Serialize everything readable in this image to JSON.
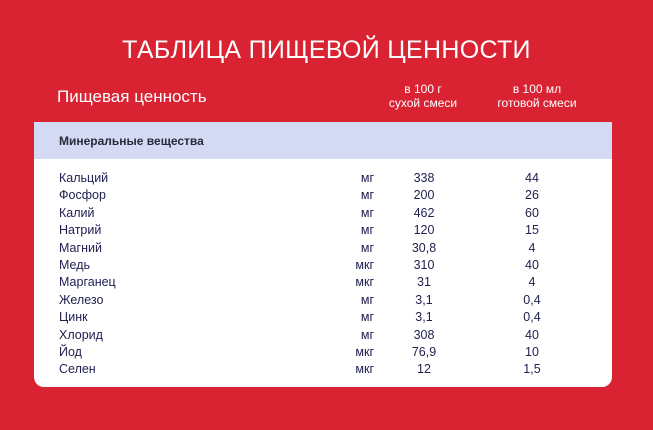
{
  "title": "ТАБЛИЦА ПИЩЕВОЙ ЦЕННОСТИ",
  "header": {
    "label": "Пищевая ценность",
    "col1": [
      "в 100 г",
      "сухой смеси"
    ],
    "col2": [
      "в 100 мл",
      "готовой смеси"
    ]
  },
  "section": "Минеральные вещества",
  "rows": [
    {
      "name": "Кальций",
      "unit": "мг",
      "dry": "338",
      "ready": "44"
    },
    {
      "name": "Фосфор",
      "unit": "мг",
      "dry": "200",
      "ready": "26"
    },
    {
      "name": "Калий",
      "unit": "мг",
      "dry": "462",
      "ready": "60"
    },
    {
      "name": "Натрий",
      "unit": "мг",
      "dry": "120",
      "ready": "15"
    },
    {
      "name": "Магний",
      "unit": "мг",
      "dry": "30,8",
      "ready": "4"
    },
    {
      "name": "Медь",
      "unit": "мкг",
      "dry": "310",
      "ready": "40"
    },
    {
      "name": "Марганец",
      "unit": "мкг",
      "dry": "31",
      "ready": "4"
    },
    {
      "name": "Железо",
      "unit": "мг",
      "dry": "3,1",
      "ready": "0,4"
    },
    {
      "name": "Цинк",
      "unit": "мг",
      "dry": "3,1",
      "ready": "0,4"
    },
    {
      "name": "Хлорид",
      "unit": "мг",
      "dry": "308",
      "ready": "40"
    },
    {
      "name": "Йод",
      "unit": "мкг",
      "dry": "76,9",
      "ready": "10"
    },
    {
      "name": "Селен",
      "unit": "мкг",
      "dry": "12",
      "ready": "1,5"
    }
  ],
  "colors": {
    "background": "#d92232",
    "band": "#d4d9f4",
    "text": "#1e1f4f"
  }
}
